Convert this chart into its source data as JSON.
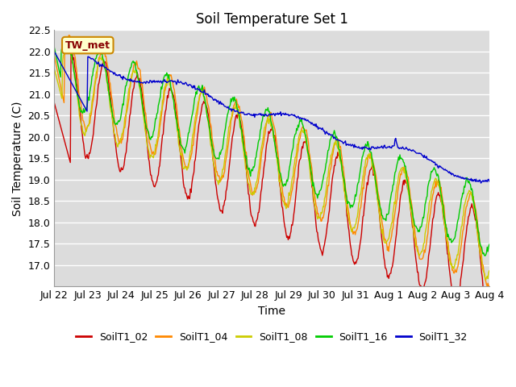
{
  "title": "Soil Temperature Set 1",
  "xlabel": "Time",
  "ylabel": "Soil Temperature (C)",
  "annotation": "TW_met",
  "ylim": [
    16.5,
    22.5
  ],
  "yticks": [
    17.0,
    17.5,
    18.0,
    18.5,
    19.0,
    19.5,
    20.0,
    20.5,
    21.0,
    21.5,
    22.0,
    22.5
  ],
  "series": [
    "SoilT1_02",
    "SoilT1_04",
    "SoilT1_08",
    "SoilT1_16",
    "SoilT1_32"
  ],
  "colors": [
    "#cc0000",
    "#ff8800",
    "#cccc00",
    "#00cc00",
    "#0000cc"
  ],
  "bg_color": "#dcdcdc",
  "n_points": 624,
  "end_day": 13.0,
  "xtick_positions": [
    0,
    1,
    2,
    3,
    4,
    5,
    6,
    7,
    8,
    9,
    10,
    11,
    12,
    13
  ],
  "xtick_labels": [
    "Jul 22",
    "Jul 23",
    "Jul 24",
    "Jul 25",
    "Jul 26",
    "Jul 27",
    "Jul 28",
    "Jul 29",
    "Jul 30",
    "Jul 31",
    "Aug 1",
    "Aug 2",
    "Aug 3",
    "Aug 4"
  ],
  "title_fontsize": 12,
  "axis_label_fontsize": 10,
  "tick_fontsize": 9
}
